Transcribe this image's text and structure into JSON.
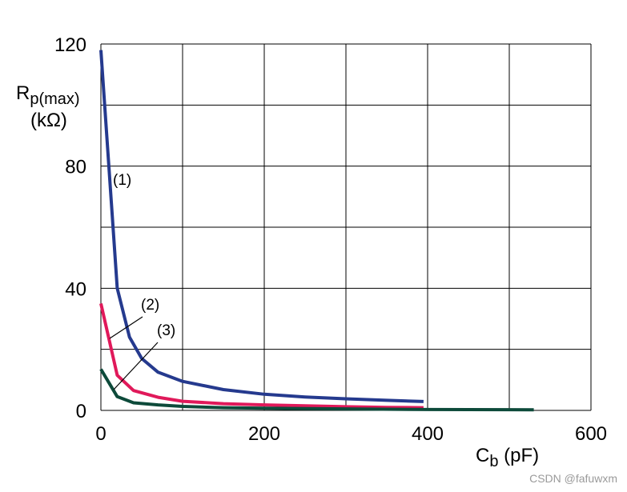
{
  "chart_data": {
    "type": "line",
    "x_ticks": [
      "0",
      "200",
      "400",
      "600"
    ],
    "y_ticks": [
      "0",
      "40",
      "80",
      "120"
    ],
    "xlim": [
      0,
      600
    ],
    "ylim": [
      0,
      120
    ],
    "grid": true,
    "ylabel": {
      "main": "R",
      "sub": "p(max)",
      "unit": "(kΩ)"
    },
    "xlabel": {
      "main": "C",
      "sub": "b",
      "unit": " (pF)"
    },
    "series": [
      {
        "name": "(1)",
        "color": "#253a8e",
        "x": [
          0,
          20,
          35,
          50,
          70,
          100,
          150,
          200,
          250,
          300,
          350,
          395
        ],
        "y": [
          118,
          40,
          24,
          17,
          12.5,
          9.5,
          6.8,
          5.3,
          4.4,
          3.8,
          3.3,
          2.9
        ]
      },
      {
        "name": "(2)",
        "color": "#e0195a",
        "x": [
          0,
          20,
          40,
          70,
          100,
          150,
          200,
          250,
          300,
          350,
          395
        ],
        "y": [
          35,
          11.5,
          6.5,
          4.3,
          3.0,
          2.2,
          1.8,
          1.5,
          1.2,
          1.0,
          0.9
        ]
      },
      {
        "name": "(3)",
        "color": "#0d4a3a",
        "x": [
          0,
          20,
          40,
          70,
          100,
          150,
          200,
          300,
          400,
          530
        ],
        "y": [
          13.5,
          4.5,
          2.5,
          1.8,
          1.3,
          0.9,
          0.7,
          0.5,
          0.3,
          0.2
        ]
      }
    ]
  },
  "watermark": "CSDN @fafuwxm"
}
